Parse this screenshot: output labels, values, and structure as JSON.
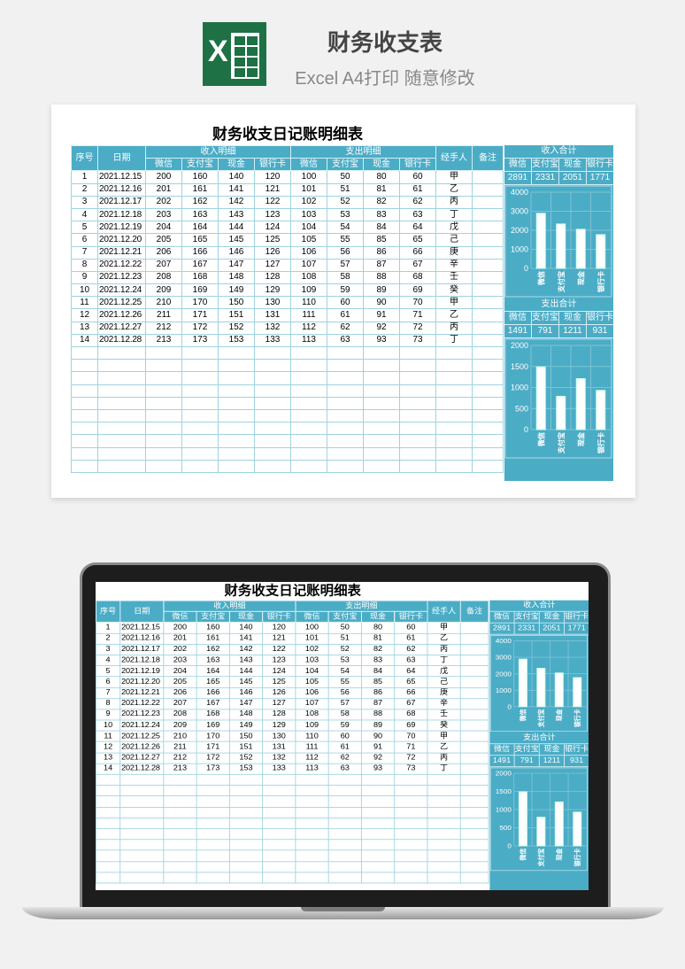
{
  "header": {
    "title": "财务收支表",
    "subtitle": "Excel A4打印 随意修改",
    "logo_letter": "X"
  },
  "sheet": {
    "title": "财务收支日记账明细表",
    "cols": {
      "seq": "序号",
      "date": "日期",
      "income": "收入明细",
      "expense": "支出明细",
      "handler": "经手人",
      "note": "备注"
    },
    "sub_cols": [
      "微信",
      "支付宝",
      "现金",
      "银行卡"
    ],
    "rows": [
      [
        "1",
        "2021.12.15",
        "200",
        "160",
        "140",
        "120",
        "100",
        "50",
        "80",
        "60",
        "甲"
      ],
      [
        "2",
        "2021.12.16",
        "201",
        "161",
        "141",
        "121",
        "101",
        "51",
        "81",
        "61",
        "乙"
      ],
      [
        "3",
        "2021.12.17",
        "202",
        "162",
        "142",
        "122",
        "102",
        "52",
        "82",
        "62",
        "丙"
      ],
      [
        "4",
        "2021.12.18",
        "203",
        "163",
        "143",
        "123",
        "103",
        "53",
        "83",
        "63",
        "丁"
      ],
      [
        "5",
        "2021.12.19",
        "204",
        "164",
        "144",
        "124",
        "104",
        "54",
        "84",
        "64",
        "戊"
      ],
      [
        "6",
        "2021.12.20",
        "205",
        "165",
        "145",
        "125",
        "105",
        "55",
        "85",
        "65",
        "己"
      ],
      [
        "7",
        "2021.12.21",
        "206",
        "166",
        "146",
        "126",
        "106",
        "56",
        "86",
        "66",
        "庚"
      ],
      [
        "8",
        "2021.12.22",
        "207",
        "167",
        "147",
        "127",
        "107",
        "57",
        "87",
        "67",
        "辛"
      ],
      [
        "9",
        "2021.12.23",
        "208",
        "168",
        "148",
        "128",
        "108",
        "58",
        "88",
        "68",
        "壬"
      ],
      [
        "10",
        "2021.12.24",
        "209",
        "169",
        "149",
        "129",
        "109",
        "59",
        "89",
        "69",
        "癸"
      ],
      [
        "11",
        "2021.12.25",
        "210",
        "170",
        "150",
        "130",
        "110",
        "60",
        "90",
        "70",
        "甲"
      ],
      [
        "12",
        "2021.12.26",
        "211",
        "171",
        "151",
        "131",
        "111",
        "61",
        "91",
        "71",
        "乙"
      ],
      [
        "13",
        "2021.12.27",
        "212",
        "172",
        "152",
        "132",
        "112",
        "62",
        "92",
        "72",
        "丙"
      ],
      [
        "14",
        "2021.12.28",
        "213",
        "173",
        "153",
        "133",
        "113",
        "63",
        "93",
        "73",
        "丁"
      ]
    ],
    "income_total": {
      "title": "收入合计",
      "values": [
        "2891",
        "2331",
        "2051",
        "1771"
      ]
    },
    "expense_total": {
      "title": "支出合计",
      "values": [
        "1491",
        "791",
        "1211",
        "931"
      ]
    }
  },
  "chart_data": [
    {
      "type": "bar",
      "categories": [
        "微信",
        "支付宝",
        "现金",
        "银行卡"
      ],
      "values": [
        2891,
        2331,
        2051,
        1771
      ],
      "ylim": [
        0,
        4000
      ],
      "ticks": [
        "0",
        "1000",
        "2000",
        "3000",
        "4000"
      ],
      "grid": true
    },
    {
      "type": "bar",
      "categories": [
        "微信",
        "支付宝",
        "现金",
        "银行卡"
      ],
      "values": [
        1491,
        791,
        1211,
        931
      ],
      "ylim": [
        0,
        2000
      ],
      "ticks": [
        "0",
        "500",
        "1000",
        "1500",
        "2000"
      ],
      "grid": true
    }
  ],
  "colors": {
    "accent": "#4bacc6",
    "excel_green": "#1e7145"
  }
}
